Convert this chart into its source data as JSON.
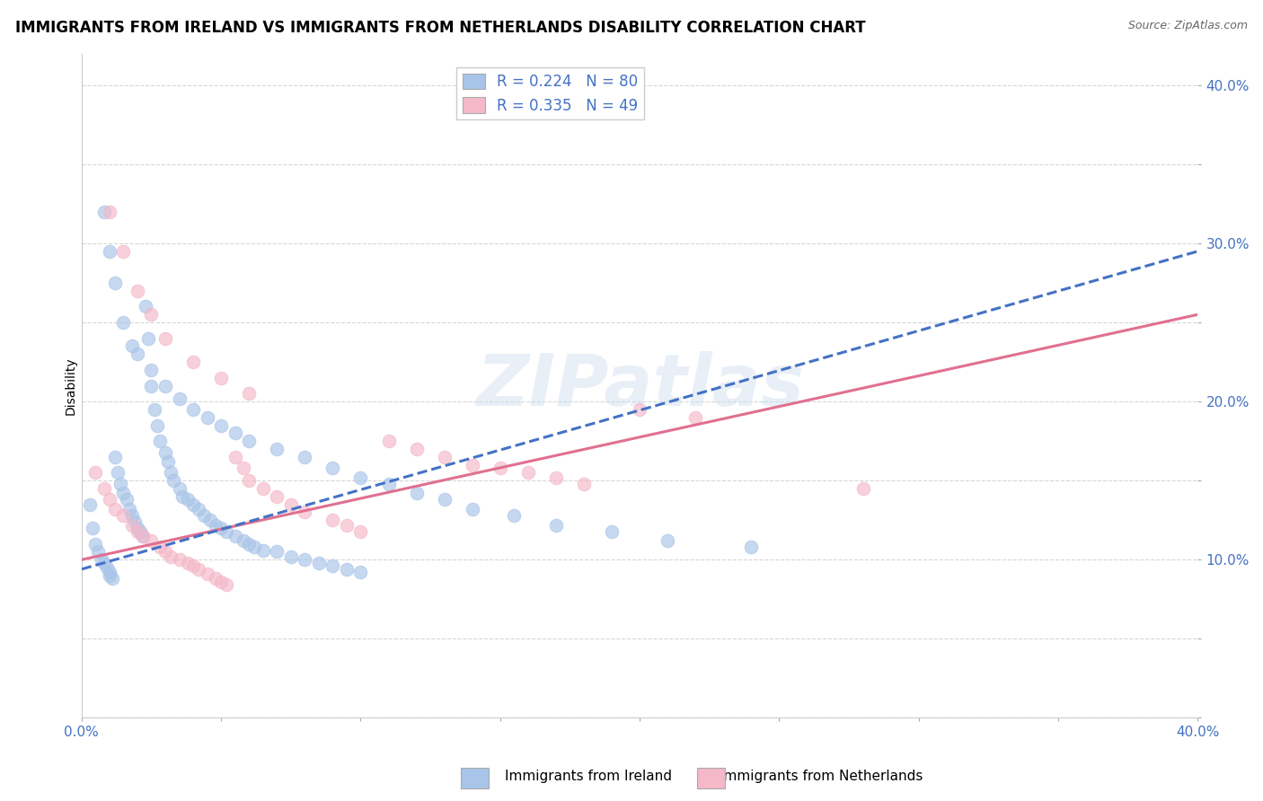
{
  "title": "IMMIGRANTS FROM IRELAND VS IMMIGRANTS FROM NETHERLANDS DISABILITY CORRELATION CHART",
  "source": "Source: ZipAtlas.com",
  "ylabel": "Disability",
  "xlabel": "",
  "xlim": [
    0.0,
    0.4
  ],
  "ylim": [
    0.0,
    0.42
  ],
  "xticks": [
    0.0,
    0.05,
    0.1,
    0.15,
    0.2,
    0.25,
    0.3,
    0.35,
    0.4
  ],
  "yticks": [
    0.0,
    0.05,
    0.1,
    0.15,
    0.2,
    0.25,
    0.3,
    0.35,
    0.4
  ],
  "grid_color": "#cccccc",
  "background_color": "#ffffff",
  "watermark": "ZIPatlas",
  "ireland_color": "#a8c4e8",
  "ireland_line_color": "#4472c4",
  "netherlands_color": "#f4b8c8",
  "netherlands_line_color": "#e07090",
  "ireland_R": 0.224,
  "ireland_N": 80,
  "netherlands_R": 0.335,
  "netherlands_N": 49,
  "ireland_line_start_y": 0.094,
  "ireland_line_end_y": 0.295,
  "netherlands_line_start_y": 0.1,
  "netherlands_line_end_y": 0.255,
  "legend_R_color": "#4472c4",
  "legend_N_color": "#70ad47",
  "title_fontsize": 12,
  "axis_label_fontsize": 10,
  "tick_fontsize": 11,
  "legend_fontsize": 12,
  "ireland_x": [
    0.003,
    0.004,
    0.005,
    0.006,
    0.007,
    0.008,
    0.009,
    0.01,
    0.01,
    0.011,
    0.012,
    0.013,
    0.014,
    0.015,
    0.016,
    0.017,
    0.018,
    0.019,
    0.02,
    0.021,
    0.022,
    0.023,
    0.024,
    0.025,
    0.026,
    0.027,
    0.028,
    0.03,
    0.031,
    0.032,
    0.033,
    0.035,
    0.036,
    0.038,
    0.04,
    0.042,
    0.044,
    0.046,
    0.048,
    0.05,
    0.052,
    0.055,
    0.058,
    0.06,
    0.062,
    0.065,
    0.07,
    0.075,
    0.08,
    0.085,
    0.09,
    0.095,
    0.1,
    0.008,
    0.01,
    0.012,
    0.015,
    0.018,
    0.02,
    0.025,
    0.03,
    0.035,
    0.04,
    0.045,
    0.05,
    0.055,
    0.06,
    0.07,
    0.08,
    0.09,
    0.1,
    0.11,
    0.12,
    0.13,
    0.14,
    0.155,
    0.17,
    0.19,
    0.21,
    0.24
  ],
  "ireland_y": [
    0.135,
    0.12,
    0.11,
    0.105,
    0.1,
    0.098,
    0.095,
    0.092,
    0.09,
    0.088,
    0.165,
    0.155,
    0.148,
    0.142,
    0.138,
    0.132,
    0.128,
    0.124,
    0.12,
    0.118,
    0.115,
    0.26,
    0.24,
    0.21,
    0.195,
    0.185,
    0.175,
    0.168,
    0.162,
    0.155,
    0.15,
    0.145,
    0.14,
    0.138,
    0.135,
    0.132,
    0.128,
    0.125,
    0.122,
    0.12,
    0.118,
    0.115,
    0.112,
    0.11,
    0.108,
    0.106,
    0.105,
    0.102,
    0.1,
    0.098,
    0.096,
    0.094,
    0.092,
    0.32,
    0.295,
    0.275,
    0.25,
    0.235,
    0.23,
    0.22,
    0.21,
    0.202,
    0.195,
    0.19,
    0.185,
    0.18,
    0.175,
    0.17,
    0.165,
    0.158,
    0.152,
    0.148,
    0.142,
    0.138,
    0.132,
    0.128,
    0.122,
    0.118,
    0.112,
    0.108
  ],
  "netherlands_x": [
    0.005,
    0.008,
    0.01,
    0.012,
    0.015,
    0.018,
    0.02,
    0.022,
    0.025,
    0.028,
    0.03,
    0.032,
    0.035,
    0.038,
    0.04,
    0.042,
    0.045,
    0.048,
    0.05,
    0.052,
    0.055,
    0.058,
    0.06,
    0.065,
    0.07,
    0.075,
    0.08,
    0.09,
    0.095,
    0.1,
    0.11,
    0.12,
    0.13,
    0.14,
    0.15,
    0.16,
    0.17,
    0.18,
    0.2,
    0.22,
    0.01,
    0.015,
    0.02,
    0.025,
    0.03,
    0.04,
    0.05,
    0.06,
    0.28
  ],
  "netherlands_y": [
    0.155,
    0.145,
    0.138,
    0.132,
    0.128,
    0.122,
    0.118,
    0.115,
    0.112,
    0.108,
    0.105,
    0.102,
    0.1,
    0.098,
    0.096,
    0.094,
    0.091,
    0.088,
    0.086,
    0.084,
    0.165,
    0.158,
    0.15,
    0.145,
    0.14,
    0.135,
    0.13,
    0.125,
    0.122,
    0.118,
    0.175,
    0.17,
    0.165,
    0.16,
    0.158,
    0.155,
    0.152,
    0.148,
    0.195,
    0.19,
    0.32,
    0.295,
    0.27,
    0.255,
    0.24,
    0.225,
    0.215,
    0.205,
    0.145
  ]
}
